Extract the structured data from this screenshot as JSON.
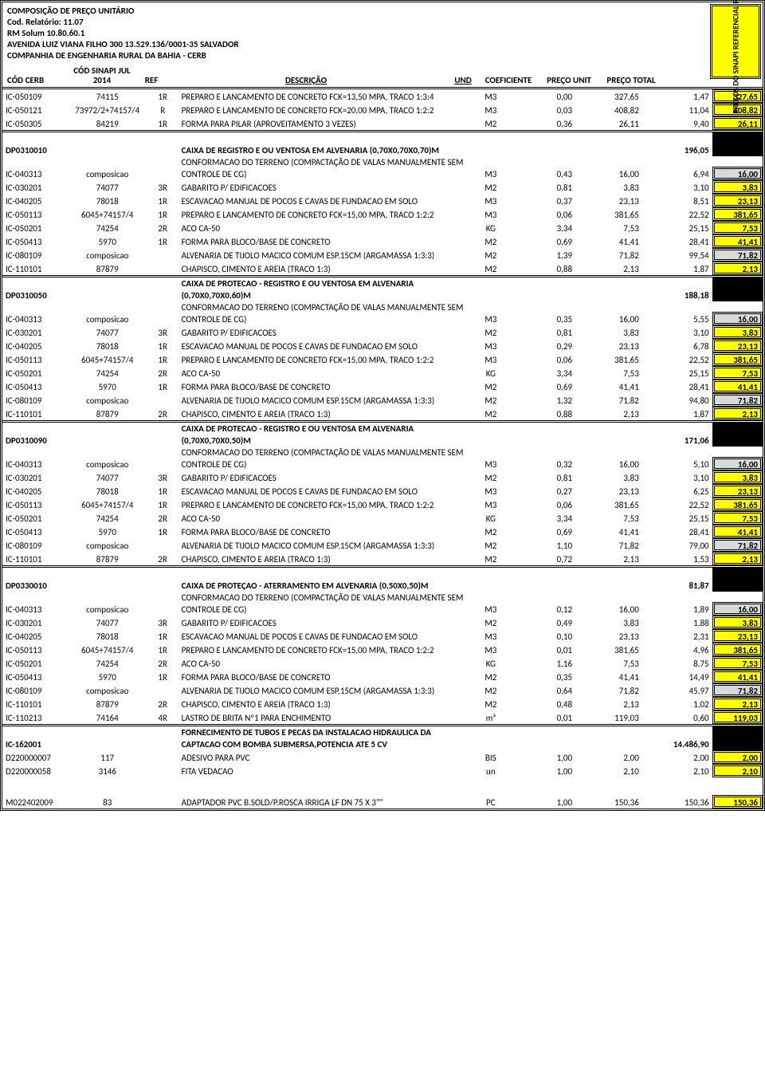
{
  "header": {
    "l1": "COMPOSIÇÃO DE PREÇO UNITÁRIO",
    "l2": "Cod. Relatório: 11.07",
    "l3": "RM Solum 10.80.60.1",
    "l4": "AVENIDA LUIZ VIANA FILHO 300 13.529.136/0001-35 SALVADOR",
    "l5": "COMPANHIA DE ENGENHARIA RURAL DA BAHIA - CERB"
  },
  "columns": {
    "cerb": "CÓD CERB",
    "sinapi": "CÓD SINAPI JUL 2014",
    "ref": "REF",
    "desc": "DESCRIÇÃO",
    "und": "UND",
    "coef": "COEFICIENTE",
    "unit": "PREÇO UNIT",
    "total": "PREÇO TOTAL"
  },
  "side_label": "PREÇOS DO SINAPI REFERENCIAL REGIONAL",
  "rows": [
    {
      "cerb": "IC-050109",
      "sinapi": "74115",
      "ref": "1R",
      "desc": "PREPARO E LANCAMENTO DE CONCRETO FCK=13,50 MPA, TRACO 1:3:4",
      "und": "M3",
      "coef": "0,00",
      "unit": "327,65",
      "total": "1,47",
      "side": "327,65",
      "side_cls": "side-yellow"
    },
    {
      "cerb": "IC-050121",
      "sinapi": "73972/2+74157/4",
      "ref": "R",
      "desc": "PREPARO E LANCAMENTO DE CONCRETO FCK=20,00 MPA, TRACO 1:2:2",
      "und": "M3",
      "coef": "0,03",
      "unit": "408,82",
      "total": "11,04",
      "side": "408,82",
      "side_cls": "side-yellow"
    },
    {
      "cerb": "IC-050305",
      "sinapi": "84219",
      "ref": "1R",
      "desc": "FORMA PARA PILAR (APROVEITAMENTO 3 VEZES)",
      "und": "M2",
      "coef": "0,36",
      "unit": "26,11",
      "total": "9,40",
      "side": "26,11",
      "side_cls": "side-yellow"
    },
    {
      "cerb": "DP0310010",
      "sinapi": "",
      "ref": "",
      "desc": "CAIXA DE REGISTRO E OU VENTOSA EM ALVENARIA (0,70X0,70X0,70)M",
      "und": "",
      "coef": "",
      "unit": "",
      "total": "196,05",
      "side": "",
      "side_cls": "",
      "bold": true,
      "section": true
    },
    {
      "cerb": "IC-040313",
      "sinapi": "composicao",
      "ref": "",
      "desc": "CONFORMACAO DO TERRENO (COMPACTAÇÃO DE VALAS MANUALMENTE SEM CONTROLE DE CG)",
      "und": "M3",
      "coef": "0,43",
      "unit": "16,00",
      "total": "6,94",
      "side": "16,00",
      "side_cls": "side-gray"
    },
    {
      "cerb": "IC-030201",
      "sinapi": "74077",
      "ref": "3R",
      "desc": "GABARITO P/ EDIFICACOES",
      "und": "M2",
      "coef": "0,81",
      "unit": "3,83",
      "total": "3,10",
      "side": "3,83",
      "side_cls": "side-yellow"
    },
    {
      "cerb": "IC-040205",
      "sinapi": "78018",
      "ref": "1R",
      "desc": "ESCAVACAO MANUAL DE POCOS E CAVAS DE FUNDACAO EM SOLO",
      "und": "M3",
      "coef": "0,37",
      "unit": "23,13",
      "total": "8,51",
      "side": "23,13",
      "side_cls": "side-yellow"
    },
    {
      "cerb": "IC-050113",
      "sinapi": "6045+74157/4",
      "ref": "1R",
      "desc": "PREPARO E LANCAMENTO DE CONCRETO FCK=15,00 MPA, TRACO 1:2:2",
      "und": "M3",
      "coef": "0,06",
      "unit": "381,65",
      "total": "22,52",
      "side": "381,65",
      "side_cls": "side-yellow"
    },
    {
      "cerb": "IC-050201",
      "sinapi": "74254",
      "ref": "2R",
      "desc": "ACO CA-50",
      "und": "KG",
      "coef": "3,34",
      "unit": "7,53",
      "total": "25,15",
      "side": "7,53",
      "side_cls": "side-yellow"
    },
    {
      "cerb": "IC-050413",
      "sinapi": "5970",
      "ref": "1R",
      "desc": "FORMA PARA BLOCO/BASE DE CONCRETO",
      "und": "M2",
      "coef": "0,69",
      "unit": "41,41",
      "total": "28,41",
      "side": "41,41",
      "side_cls": "side-yellow"
    },
    {
      "cerb": "IC-080109",
      "sinapi": "composicao",
      "ref": "",
      "desc": "ALVENARIA DE TIJOLO MACICO COMUM ESP.15CM (ARGAMASSA 1:3:3)",
      "und": "M2",
      "coef": "1,39",
      "unit": "71,82",
      "total": "99,54",
      "side": "71,82",
      "side_cls": "side-gray"
    },
    {
      "cerb": "IC-110101",
      "sinapi": "87879",
      "ref": "",
      "desc": "CHAPISCO, CIMENTO E AREIA (TRACO 1:3)",
      "und": "M2",
      "coef": "0,88",
      "unit": "2,13",
      "total": "1,87",
      "side": "2,13",
      "side_cls": "side-yellow"
    },
    {
      "cerb": "DP0310050",
      "sinapi": "",
      "ref": "",
      "desc": "CAIXA DE PROTECAO - REGISTRO E OU VENTOSA EM ALVENARIA (0,70X0,70X0,60)M",
      "und": "",
      "coef": "",
      "unit": "",
      "total": "188,18",
      "side": "",
      "side_cls": "",
      "bold": true,
      "section": true
    },
    {
      "cerb": "IC-040313",
      "sinapi": "composicao",
      "ref": "",
      "desc": "CONFORMACAO DO TERRENO (COMPACTAÇÃO DE VALAS MANUALMENTE SEM CONTROLE DE CG)",
      "und": "M3",
      "coef": "0,35",
      "unit": "16,00",
      "total": "5,55",
      "side": "16,00",
      "side_cls": "side-gray"
    },
    {
      "cerb": "IC-030201",
      "sinapi": "74077",
      "ref": "3R",
      "desc": "GABARITO P/ EDIFICACOES",
      "und": "M2",
      "coef": "0,81",
      "unit": "3,83",
      "total": "3,10",
      "side": "3,83",
      "side_cls": "side-yellow"
    },
    {
      "cerb": "IC-040205",
      "sinapi": "78018",
      "ref": "1R",
      "desc": "ESCAVACAO MANUAL DE POCOS E CAVAS DE FUNDACAO EM SOLO",
      "und": "M3",
      "coef": "0,29",
      "unit": "23,13",
      "total": "6,78",
      "side": "23,13",
      "side_cls": "side-yellow"
    },
    {
      "cerb": "IC-050113",
      "sinapi": "6045+74157/4",
      "ref": "1R",
      "desc": "PREPARO E LANCAMENTO DE CONCRETO FCK=15,00 MPA, TRACO 1:2:2",
      "und": "M3",
      "coef": "0,06",
      "unit": "381,65",
      "total": "22,52",
      "side": "381,65",
      "side_cls": "side-yellow"
    },
    {
      "cerb": "IC-050201",
      "sinapi": "74254",
      "ref": "2R",
      "desc": "ACO CA-50",
      "und": "KG",
      "coef": "3,34",
      "unit": "7,53",
      "total": "25,15",
      "side": "7,53",
      "side_cls": "side-yellow"
    },
    {
      "cerb": "IC-050413",
      "sinapi": "5970",
      "ref": "1R",
      "desc": "FORMA PARA BLOCO/BASE DE CONCRETO",
      "und": "M2",
      "coef": "0,69",
      "unit": "41,41",
      "total": "28,41",
      "side": "41,41",
      "side_cls": "side-yellow"
    },
    {
      "cerb": "IC-080109",
      "sinapi": "composicao",
      "ref": "",
      "desc": "ALVENARIA DE TIJOLO MACICO COMUM ESP.15CM (ARGAMASSA 1:3:3)",
      "und": "M2",
      "coef": "1,32",
      "unit": "71,82",
      "total": "94,80",
      "side": "71,82",
      "side_cls": "side-gray"
    },
    {
      "cerb": "IC-110101",
      "sinapi": "87879",
      "ref": "2R",
      "desc": "CHAPISCO, CIMENTO E AREIA (TRACO 1:3)",
      "und": "M2",
      "coef": "0,88",
      "unit": "2,13",
      "total": "1,87",
      "side": "2,13",
      "side_cls": "side-yellow"
    },
    {
      "cerb": "DP0310090",
      "sinapi": "",
      "ref": "",
      "desc": "CAIXA DE PROTECAO - REGISTRO E OU VENTOSA EM ALVENARIA (0,70X0,70X0,50)M",
      "und": "",
      "coef": "",
      "unit": "",
      "total": "171,06",
      "side": "",
      "side_cls": "",
      "bold": true,
      "section": true
    },
    {
      "cerb": "IC-040313",
      "sinapi": "composicao",
      "ref": "",
      "desc": "CONFORMACAO DO TERRENO (COMPACTAÇÃO DE VALAS MANUALMENTE SEM CONTROLE DE CG)",
      "und": "M3",
      "coef": "0,32",
      "unit": "16,00",
      "total": "5,10",
      "side": "16,00",
      "side_cls": "side-gray"
    },
    {
      "cerb": "IC-030201",
      "sinapi": "74077",
      "ref": "3R",
      "desc": "GABARITO P/ EDIFICACOES",
      "und": "M2",
      "coef": "0,81",
      "unit": "3,83",
      "total": "3,10",
      "side": "3,83",
      "side_cls": "side-yellow"
    },
    {
      "cerb": "IC-040205",
      "sinapi": "78018",
      "ref": "1R",
      "desc": "ESCAVACAO MANUAL DE POCOS E CAVAS DE FUNDACAO EM SOLO",
      "und": "M3",
      "coef": "0,27",
      "unit": "23,13",
      "total": "6,25",
      "side": "23,13",
      "side_cls": "side-yellow"
    },
    {
      "cerb": "IC-050113",
      "sinapi": "6045+74157/4",
      "ref": "1R",
      "desc": "PREPARO E LANCAMENTO DE CONCRETO FCK=15,00 MPA, TRACO 1:2:2",
      "und": "M3",
      "coef": "0,06",
      "unit": "381,65",
      "total": "22,52",
      "side": "381,65",
      "side_cls": "side-yellow"
    },
    {
      "cerb": "IC-050201",
      "sinapi": "74254",
      "ref": "2R",
      "desc": "ACO CA-50",
      "und": "KG",
      "coef": "3,34",
      "unit": "7,53",
      "total": "25,15",
      "side": "7,53",
      "side_cls": "side-yellow"
    },
    {
      "cerb": "IC-050413",
      "sinapi": "5970",
      "ref": "1R",
      "desc": "FORMA PARA BLOCO/BASE DE CONCRETO",
      "und": "M2",
      "coef": "0,69",
      "unit": "41,41",
      "total": "28,41",
      "side": "41,41",
      "side_cls": "side-yellow"
    },
    {
      "cerb": "IC-080109",
      "sinapi": "composicao",
      "ref": "",
      "desc": "ALVENARIA DE TIJOLO MACICO COMUM ESP.15CM (ARGAMASSA 1:3:3)",
      "und": "M2",
      "coef": "1,10",
      "unit": "71,82",
      "total": "79,00",
      "side": "71,82",
      "side_cls": "side-gray"
    },
    {
      "cerb": "IC-110101",
      "sinapi": "87879",
      "ref": "2R",
      "desc": "CHAPISCO, CIMENTO E AREIA (TRACO 1:3)",
      "und": "M2",
      "coef": "0,72",
      "unit": "2,13",
      "total": "1,53",
      "side": "2,13",
      "side_cls": "side-yellow"
    },
    {
      "cerb": "DP0330010",
      "sinapi": "",
      "ref": "",
      "desc": "CAIXA DE PROTEÇAO - ATERRAMENTO EM ALVENARIA (0,50X0,50)M",
      "und": "",
      "coef": "",
      "unit": "",
      "total": "81,87",
      "side": "",
      "side_cls": "",
      "bold": true,
      "section": true
    },
    {
      "cerb": "IC-040313",
      "sinapi": "composicao",
      "ref": "",
      "desc": "CONFORMACAO DO TERRENO (COMPACTAÇÃO DE VALAS MANUALMENTE SEM CONTROLE DE CG)",
      "und": "M3",
      "coef": "0,12",
      "unit": "16,00",
      "total": "1,89",
      "side": "16,00",
      "side_cls": "side-gray"
    },
    {
      "cerb": "IC-030201",
      "sinapi": "74077",
      "ref": "3R",
      "desc": "GABARITO P/ EDIFICACOES",
      "und": "M2",
      "coef": "0,49",
      "unit": "3,83",
      "total": "1,88",
      "side": "3,83",
      "side_cls": "side-yellow"
    },
    {
      "cerb": "IC-040205",
      "sinapi": "78018",
      "ref": "1R",
      "desc": "ESCAVACAO MANUAL DE POCOS E CAVAS DE FUNDACAO EM SOLO",
      "und": "M3",
      "coef": "0,10",
      "unit": "23,13",
      "total": "2,31",
      "side": "23,13",
      "side_cls": "side-yellow"
    },
    {
      "cerb": "IC-050113",
      "sinapi": "6045+74157/4",
      "ref": "1R",
      "desc": "PREPARO E LANCAMENTO DE CONCRETO FCK=15,00 MPA, TRACO 1:2:2",
      "und": "M3",
      "coef": "0,01",
      "unit": "381,65",
      "total": "4,96",
      "side": "381,65",
      "side_cls": "side-yellow"
    },
    {
      "cerb": "IC-050201",
      "sinapi": "74254",
      "ref": "2R",
      "desc": "ACO CA-50",
      "und": "KG",
      "coef": "1,16",
      "unit": "7,53",
      "total": "8,75",
      "side": "7,53",
      "side_cls": "side-yellow"
    },
    {
      "cerb": "IC-050413",
      "sinapi": "5970",
      "ref": "1R",
      "desc": "FORMA PARA BLOCO/BASE DE CONCRETO",
      "und": "M2",
      "coef": "0,35",
      "unit": "41,41",
      "total": "14,49",
      "side": "41,41",
      "side_cls": "side-yellow"
    },
    {
      "cerb": "IC-080109",
      "sinapi": "composicao",
      "ref": "",
      "desc": "ALVENARIA DE TIJOLO MACICO COMUM ESP.15CM (ARGAMASSA 1:3:3)",
      "und": "M2",
      "coef": "0,64",
      "unit": "71,82",
      "total": "45,97",
      "side": "71,82",
      "side_cls": "side-gray"
    },
    {
      "cerb": "IC-110101",
      "sinapi": "87879",
      "ref": "2R",
      "desc": "CHAPISCO, CIMENTO E AREIA (TRACO 1:3)",
      "und": "M2",
      "coef": "0,48",
      "unit": "2,13",
      "total": "1,02",
      "side": "2,13",
      "side_cls": "side-yellow"
    },
    {
      "cerb": "IC-110213",
      "sinapi": "74164",
      "ref": "4R",
      "desc": "LASTRO DE BRITA Nº1 PARA ENCHIMENTO",
      "und": "m³",
      "coef": "0,01",
      "unit": "119,03",
      "total": "0,60",
      "side": "119,03",
      "side_cls": "side-yellow"
    },
    {
      "cerb": "IC-162001",
      "sinapi": "",
      "ref": "",
      "desc": "FORNECIMENTO DE TUBOS E PECAS DA INSTALACAO HIDRAULICA DA CAPTACAO COM BOMBA SUBMERSA,POTENCIA ATE 5 CV",
      "und": "",
      "coef": "",
      "unit": "",
      "total": "14.486,90",
      "side": "",
      "side_cls": "",
      "bold": true,
      "section": true
    },
    {
      "cerb": "D220000007",
      "sinapi": "117",
      "ref": "",
      "desc": "ADESIVO PARA PVC",
      "und": "BIS",
      "coef": "1,00",
      "unit": "2,00",
      "total": "2,00",
      "side": "2,00",
      "side_cls": "side-yellow"
    },
    {
      "cerb": "D220000058",
      "sinapi": "3146",
      "ref": "",
      "desc": "FITA VEDACAO",
      "und": "un",
      "coef": "1,00",
      "unit": "2,10",
      "total": "2,10",
      "side": "2,10",
      "side_cls": "side-yellow"
    },
    {
      "cerb": "M022402009",
      "sinapi": "83",
      "ref": "",
      "desc": "ADAPTADOR PVC B.SOLD/P.ROSCA IRRIGA LF DN 75 X 3\"\"",
      "und": "PC",
      "coef": "1,00",
      "unit": "150,36",
      "total": "150,36",
      "side": "150,36",
      "side_cls": "side-yellow",
      "gap_before": true
    }
  ]
}
